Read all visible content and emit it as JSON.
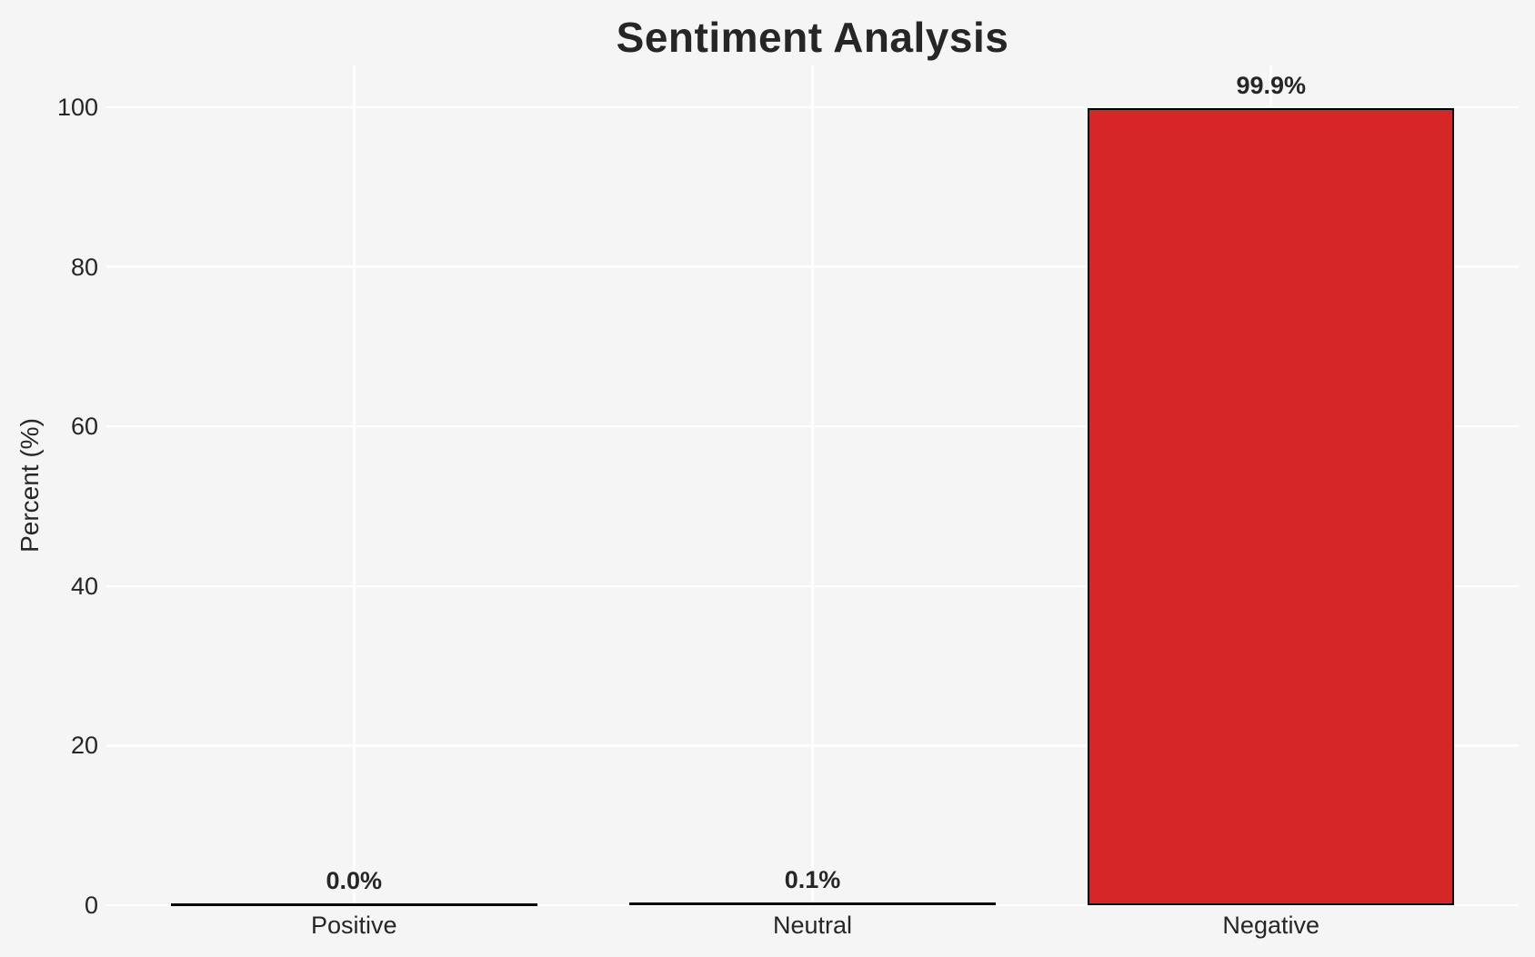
{
  "chart_data": {
    "type": "bar",
    "title": "Sentiment Analysis",
    "xlabel": "",
    "ylabel": "Percent (%)",
    "categories": [
      "Positive",
      "Neutral",
      "Negative"
    ],
    "values": [
      0.0,
      0.1,
      99.9
    ],
    "value_labels": [
      "0.0%",
      "0.1%",
      "99.9%"
    ],
    "yticks": [
      0,
      20,
      40,
      60,
      80,
      100
    ],
    "ytick_labels": [
      "0",
      "20",
      "40",
      "60",
      "80",
      "100"
    ],
    "ylim": [
      0,
      100
    ],
    "grid": true,
    "legend_position": "none",
    "colors": {
      "bar_fill": "#d62728",
      "bar_edge": "#000000",
      "background": "#f5f5f5",
      "gridline": "#ffffff",
      "text": "#262626"
    }
  }
}
